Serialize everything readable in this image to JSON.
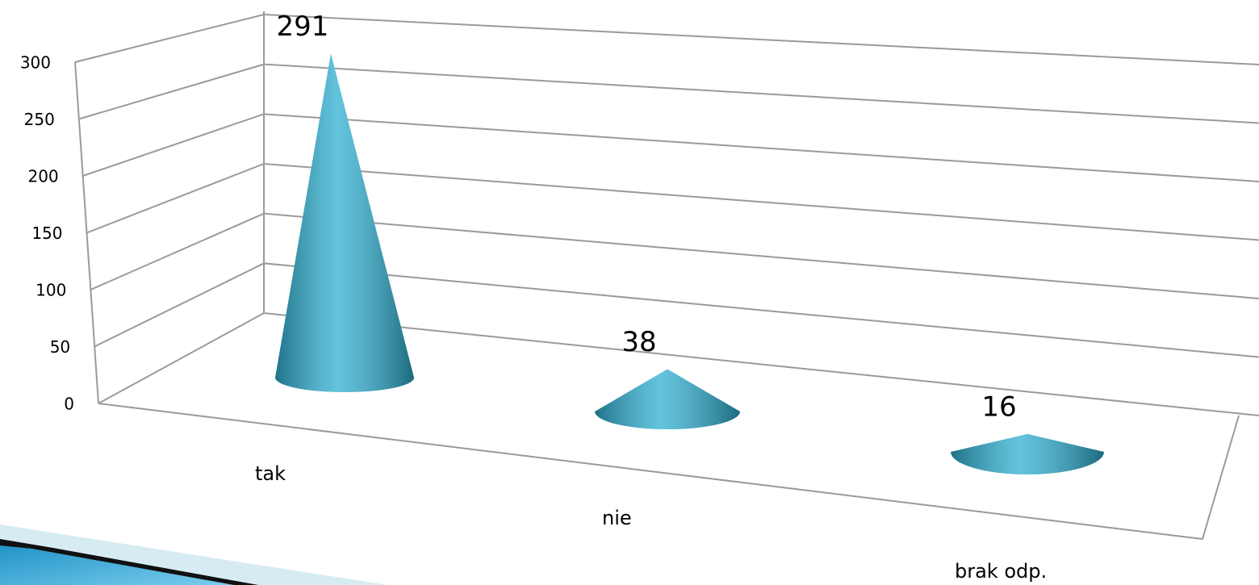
{
  "chart_data": {
    "type": "cone",
    "categories": [
      "tak",
      "nie",
      "brak odp."
    ],
    "values": [
      291,
      38,
      16
    ],
    "color": "#2fb0d2",
    "ylim": [
      0,
      300
    ],
    "yticks": [
      0,
      50,
      100,
      150,
      200,
      250,
      300
    ],
    "grid": true
  }
}
